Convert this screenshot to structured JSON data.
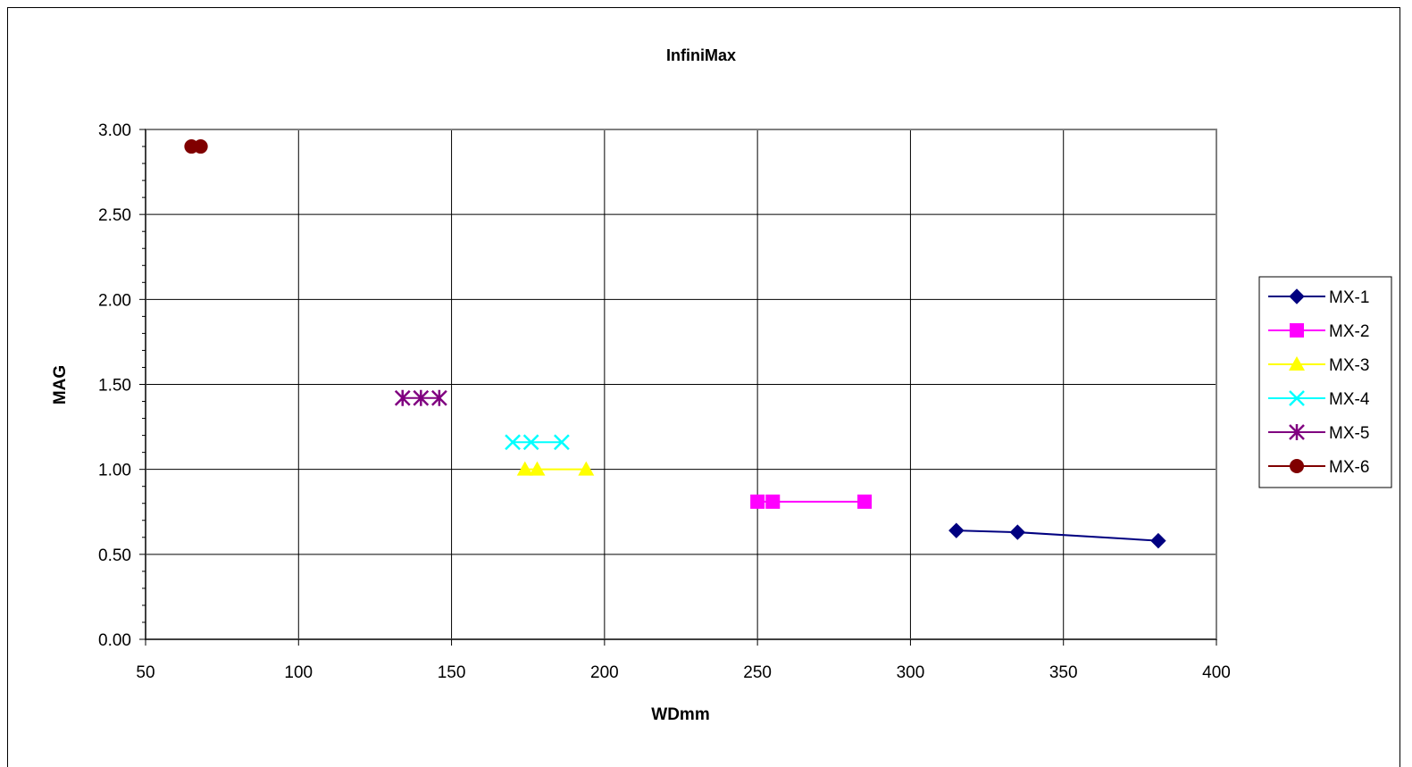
{
  "chart_data": {
    "type": "line",
    "title": "InfiniMax",
    "xlabel": "WDmm",
    "ylabel": "MAG",
    "xlim": [
      50,
      400
    ],
    "ylim": [
      0,
      3
    ],
    "x_ticks": [
      "50",
      "100",
      "150",
      "200",
      "250",
      "300",
      "350",
      "400"
    ],
    "y_ticks": [
      "0.00",
      "0.50",
      "1.00",
      "1.50",
      "2.00",
      "2.50",
      "3.00"
    ],
    "grid": true,
    "legend_position": "right",
    "series": [
      {
        "name": "MX-1",
        "color": "#000080",
        "marker": "diamond",
        "points": [
          [
            315,
            0.64
          ],
          [
            335,
            0.63
          ],
          [
            381,
            0.58
          ]
        ]
      },
      {
        "name": "MX-2",
        "color": "#FF00FF",
        "marker": "square",
        "points": [
          [
            250,
            0.81
          ],
          [
            255,
            0.81
          ],
          [
            285,
            0.81
          ]
        ]
      },
      {
        "name": "MX-3",
        "color": "#FFFF00",
        "marker": "triangle",
        "points": [
          [
            174,
            1.0
          ],
          [
            178,
            1.0
          ],
          [
            194,
            1.0
          ]
        ]
      },
      {
        "name": "MX-4",
        "color": "#00FFFF",
        "marker": "x",
        "points": [
          [
            170,
            1.16
          ],
          [
            176,
            1.16
          ],
          [
            186,
            1.16
          ]
        ]
      },
      {
        "name": "MX-5",
        "color": "#800080",
        "marker": "star",
        "points": [
          [
            134,
            1.42
          ],
          [
            140,
            1.42
          ],
          [
            146,
            1.42
          ]
        ]
      },
      {
        "name": "MX-6",
        "color": "#800000",
        "marker": "circle",
        "points": [
          [
            65,
            2.9
          ],
          [
            68,
            2.9
          ]
        ]
      }
    ]
  }
}
